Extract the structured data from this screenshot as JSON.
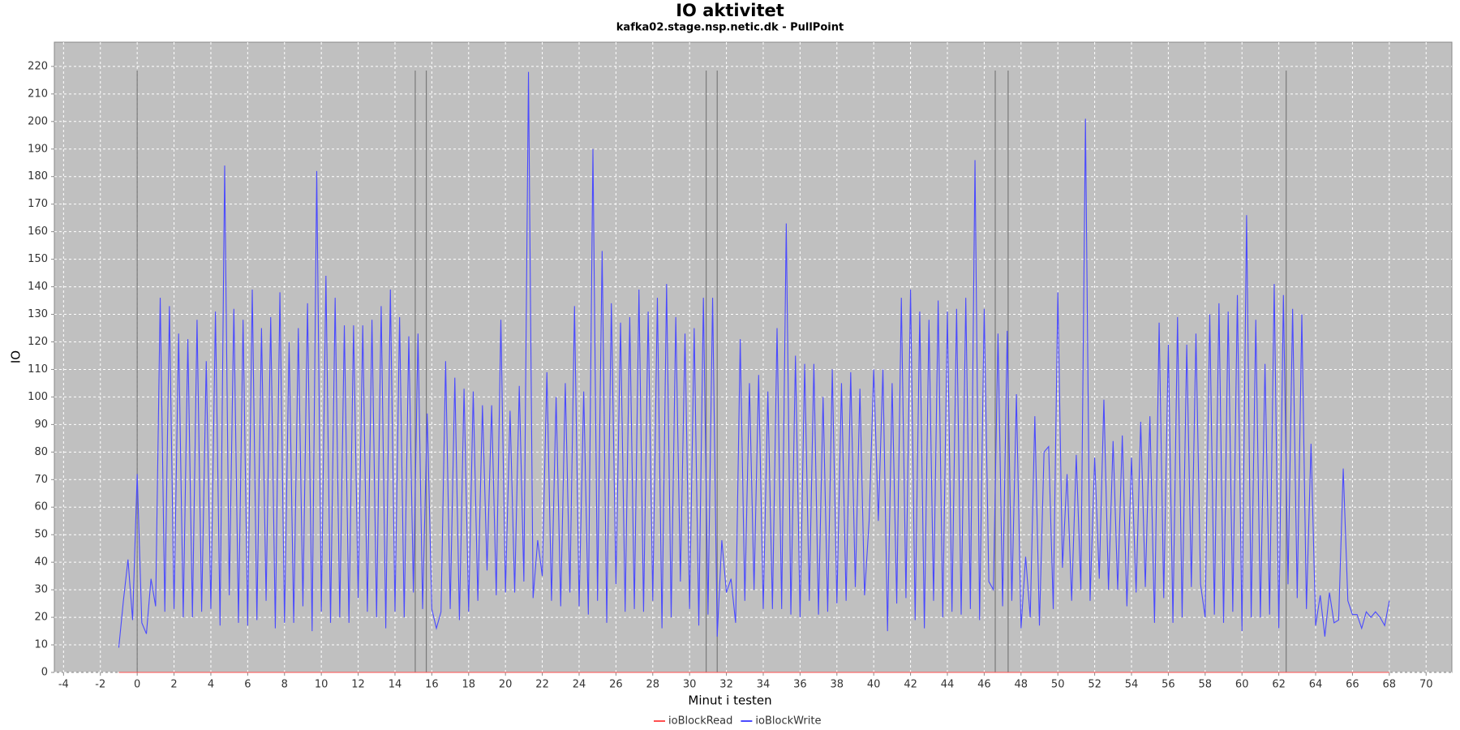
{
  "chart_data": {
    "type": "line",
    "title": "IO aktivitet",
    "subtitle": "kafka02.stage.nsp.netic.dk - PullPoint",
    "x_label": "Minut i testen",
    "y_label": "IO",
    "xlim": [
      -4.5,
      71.4
    ],
    "ylim": [
      0,
      228.8
    ],
    "xticks": [
      -4,
      -2,
      0,
      2,
      4,
      6,
      8,
      10,
      12,
      14,
      16,
      18,
      20,
      22,
      24,
      26,
      28,
      30,
      32,
      34,
      36,
      38,
      40,
      42,
      44,
      46,
      48,
      50,
      52,
      54,
      56,
      58,
      60,
      62,
      64,
      66,
      68,
      70
    ],
    "yticks": [
      0,
      10,
      20,
      30,
      40,
      50,
      60,
      70,
      80,
      90,
      100,
      110,
      120,
      130,
      140,
      150,
      160,
      170,
      180,
      190,
      200,
      210,
      220
    ],
    "grid": true,
    "legend": "bottom",
    "markers": [
      0,
      15.1,
      15.7,
      30.9,
      31.5,
      46.6,
      47.3,
      62.4
    ],
    "series": [
      {
        "name": "ioBlockRead",
        "color": "#ff5050",
        "x": [
          -1,
          68
        ],
        "values": [
          0,
          0
        ]
      },
      {
        "name": "ioBlockWrite",
        "color": "#4a4aff",
        "x": [
          -1,
          -0.75,
          -0.5,
          -0.25,
          0,
          0.25,
          0.5,
          0.75,
          1,
          1.25,
          1.5,
          1.75,
          2,
          2.25,
          2.5,
          2.75,
          3,
          3.25,
          3.5,
          3.75,
          4,
          4.25,
          4.5,
          4.75,
          5,
          5.25,
          5.5,
          5.75,
          6,
          6.25,
          6.5,
          6.75,
          7,
          7.25,
          7.5,
          7.75,
          8,
          8.25,
          8.5,
          8.75,
          9,
          9.25,
          9.5,
          9.75,
          10,
          10.25,
          10.5,
          10.75,
          11,
          11.25,
          11.5,
          11.75,
          12,
          12.25,
          12.5,
          12.75,
          13,
          13.25,
          13.5,
          13.75,
          14,
          14.25,
          14.5,
          14.75,
          15,
          15.25,
          15.5,
          15.75,
          16,
          16.25,
          16.5,
          16.75,
          17,
          17.25,
          17.5,
          17.75,
          18,
          18.25,
          18.5,
          18.75,
          19,
          19.25,
          19.5,
          19.75,
          20,
          20.25,
          20.5,
          20.75,
          21,
          21.25,
          21.5,
          21.75,
          22,
          22.25,
          22.5,
          22.75,
          23,
          23.25,
          23.5,
          23.75,
          24,
          24.25,
          24.5,
          24.75,
          25,
          25.25,
          25.5,
          25.75,
          26,
          26.25,
          26.5,
          26.75,
          27,
          27.25,
          27.5,
          27.75,
          28,
          28.25,
          28.5,
          28.75,
          29,
          29.25,
          29.5,
          29.75,
          30,
          30.25,
          30.5,
          30.75,
          31,
          31.25,
          31.5,
          31.75,
          32,
          32.25,
          32.5,
          32.75,
          33,
          33.25,
          33.5,
          33.75,
          34,
          34.25,
          34.5,
          34.75,
          35,
          35.25,
          35.5,
          35.75,
          36,
          36.25,
          36.5,
          36.75,
          37,
          37.25,
          37.5,
          37.75,
          38,
          38.25,
          38.5,
          38.75,
          39,
          39.25,
          39.5,
          39.75,
          40,
          40.25,
          40.5,
          40.75,
          41,
          41.25,
          41.5,
          41.75,
          42,
          42.25,
          42.5,
          42.75,
          43,
          43.25,
          43.5,
          43.75,
          44,
          44.25,
          44.5,
          44.75,
          45,
          45.25,
          45.5,
          45.75,
          46,
          46.25,
          46.5,
          46.75,
          47,
          47.25,
          47.5,
          47.75,
          48,
          48.25,
          48.5,
          48.75,
          49,
          49.25,
          49.5,
          49.75,
          50,
          50.25,
          50.5,
          50.75,
          51,
          51.25,
          51.5,
          51.75,
          52,
          52.25,
          52.5,
          52.75,
          53,
          53.25,
          53.5,
          53.75,
          54,
          54.25,
          54.5,
          54.75,
          55,
          55.25,
          55.5,
          55.75,
          56,
          56.25,
          56.5,
          56.75,
          57,
          57.25,
          57.5,
          57.75,
          58,
          58.25,
          58.5,
          58.75,
          59,
          59.25,
          59.5,
          59.75,
          60,
          60.25,
          60.5,
          60.75,
          61,
          61.25,
          61.5,
          61.75,
          62,
          62.25,
          62.5,
          62.75,
          63,
          63.25,
          63.5,
          63.75,
          64,
          64.25,
          64.5,
          64.75,
          65,
          65.25,
          65.5,
          65.75,
          66,
          66.25,
          66.5,
          66.75,
          67,
          67.25,
          67.5,
          67.75,
          68
        ],
        "values": [
          9,
          26,
          41,
          19,
          72,
          18,
          14,
          34,
          24,
          136,
          22,
          133,
          23,
          123,
          20,
          121,
          20,
          128,
          22,
          113,
          23,
          131,
          17,
          184,
          28,
          132,
          18,
          128,
          17,
          139,
          19,
          125,
          26,
          129,
          16,
          138,
          18,
          120,
          18,
          125,
          24,
          134,
          15,
          182,
          22,
          144,
          18,
          136,
          20,
          126,
          18,
          126,
          27,
          126,
          22,
          128,
          20,
          133,
          16,
          139,
          22,
          129,
          20,
          122,
          29,
          123,
          23,
          94,
          23,
          16,
          22,
          113,
          23,
          107,
          19,
          103,
          22,
          102,
          26,
          97,
          37,
          97,
          28,
          128,
          29,
          95,
          29,
          104,
          33,
          218,
          27,
          48,
          35,
          109,
          26,
          100,
          24,
          105,
          29,
          133,
          24,
          102,
          21,
          190,
          26,
          153,
          18,
          134,
          32,
          127,
          22,
          129,
          23,
          139,
          22,
          131,
          26,
          136,
          16,
          141,
          20,
          129,
          33,
          123,
          23,
          125,
          17,
          136,
          21,
          136,
          13,
          48,
          29,
          34,
          18,
          121,
          26,
          105,
          30,
          108,
          23,
          102,
          23,
          125,
          23,
          163,
          21,
          115,
          20,
          112,
          26,
          112,
          21,
          100,
          22,
          110,
          25,
          105,
          26,
          109,
          31,
          103,
          28,
          55,
          110,
          55,
          110,
          15,
          105,
          25,
          136,
          27,
          139,
          19,
          131,
          16,
          128,
          26,
          135,
          20,
          131,
          22,
          132,
          21,
          136,
          23,
          186,
          19,
          132,
          33,
          30,
          123,
          24,
          124,
          26,
          101,
          16,
          42,
          20,
          93,
          17,
          80,
          82,
          23,
          138,
          38,
          72,
          26,
          79,
          30,
          201,
          26,
          78,
          34,
          99,
          30,
          84,
          30,
          86,
          24,
          78,
          29,
          91,
          31,
          93,
          18,
          127,
          27,
          119,
          18,
          129,
          20,
          119,
          31,
          123,
          32,
          20,
          130,
          21,
          134,
          18,
          131,
          22,
          137,
          15,
          166,
          20,
          128,
          20,
          112,
          21,
          141,
          16,
          137,
          32,
          132,
          27,
          130,
          23,
          83,
          17,
          28,
          13,
          29,
          18,
          19,
          74,
          26,
          21,
          21,
          16,
          22,
          20,
          22,
          20,
          17,
          26
        ]
      }
    ]
  }
}
